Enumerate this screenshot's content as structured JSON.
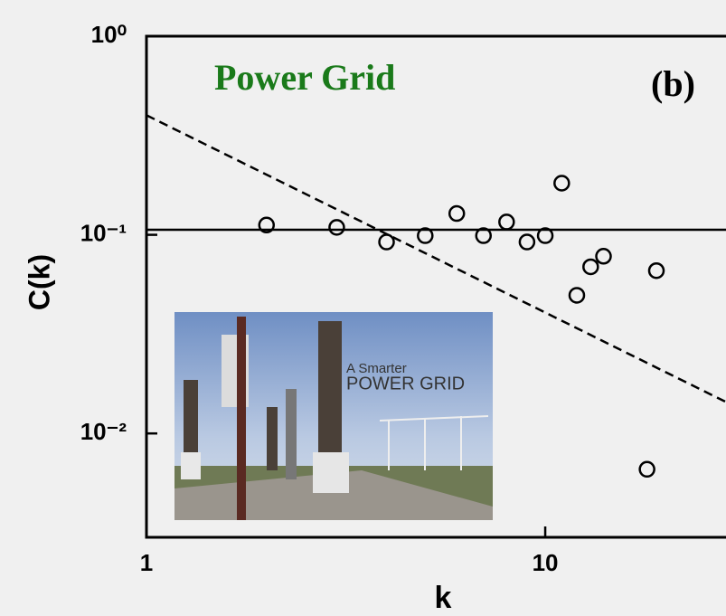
{
  "chart_data": {
    "type": "scatter",
    "annotations": {
      "label": "Power Grid",
      "label_color": "#1a7a1a",
      "panel": "(b)",
      "inset_title": "A Smarter",
      "inset_subtitle": "POWER GRID"
    },
    "x_label": "k",
    "y_label": "C(k)",
    "log_x": true,
    "log_y": true,
    "xlim": [
      1,
      28.4
    ],
    "ylim": [
      0.003,
      1
    ],
    "xticks": [
      1,
      10
    ],
    "yticks": [
      {
        "value": 1,
        "label": "10⁰"
      },
      {
        "value": 0.1,
        "label": "10⁻¹"
      },
      {
        "value": 0.01,
        "label": "10⁻²"
      }
    ],
    "points": {
      "x": [
        2,
        3,
        4,
        5,
        6,
        7,
        8,
        9,
        10,
        11,
        12,
        13,
        14,
        18,
        19
      ],
      "values": [
        0.112,
        0.109,
        0.092,
        0.099,
        0.128,
        0.099,
        0.116,
        0.092,
        0.099,
        0.182,
        0.0496,
        0.069,
        0.078,
        0.0066,
        0.066
      ],
      "color": "#000000"
    },
    "lines": [
      {
        "x": [
          1,
          28.4
        ],
        "values": [
          0.106,
          0.106
        ],
        "style": "solid",
        "color": "#000000"
      },
      {
        "x": [
          1,
          28.4
        ],
        "values": [
          0.4,
          0.0144
        ],
        "style": "dashed",
        "color": "#000000"
      }
    ]
  }
}
